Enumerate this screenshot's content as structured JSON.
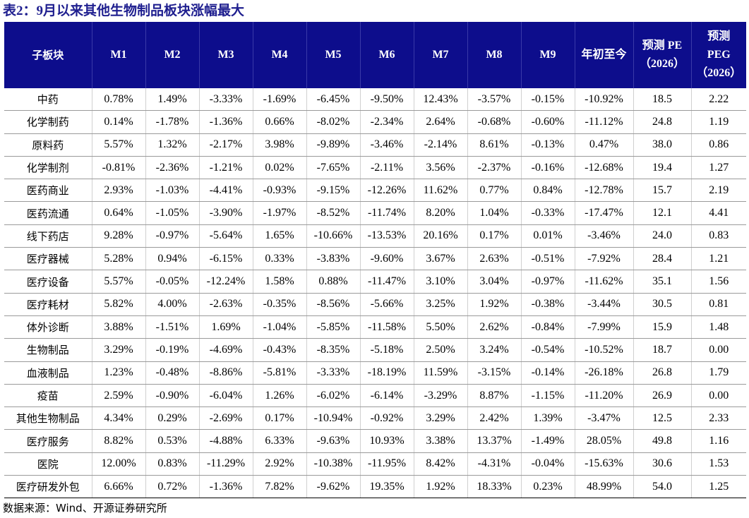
{
  "title": "表2：9月以来其他生物制品板块涨幅最大",
  "table": {
    "headers": [
      "子板块",
      "M1",
      "M2",
      "M3",
      "M4",
      "M5",
      "M6",
      "M7",
      "M8",
      "M9",
      "年初至今",
      "预测 PE\n（2026）",
      "预测\nPEG\n（2026）"
    ],
    "rows": [
      [
        "中药",
        "0.78%",
        "1.49%",
        "-3.33%",
        "-1.69%",
        "-6.45%",
        "-9.50%",
        "12.43%",
        "-3.57%",
        "-0.15%",
        "-10.92%",
        "18.5",
        "2.22"
      ],
      [
        "化学制药",
        "0.14%",
        "-1.78%",
        "-1.36%",
        "0.66%",
        "-8.02%",
        "-2.34%",
        "2.64%",
        "-0.68%",
        "-0.60%",
        "-11.12%",
        "24.8",
        "1.19"
      ],
      [
        "原料药",
        "5.57%",
        "1.32%",
        "-2.17%",
        "3.98%",
        "-9.89%",
        "-3.46%",
        "-2.14%",
        "8.61%",
        "-0.13%",
        "0.47%",
        "38.0",
        "0.86"
      ],
      [
        "化学制剂",
        "-0.81%",
        "-2.36%",
        "-1.21%",
        "0.02%",
        "-7.65%",
        "-2.11%",
        "3.56%",
        "-2.37%",
        "-0.16%",
        "-12.68%",
        "19.4",
        "1.27"
      ],
      [
        "医药商业",
        "2.93%",
        "-1.03%",
        "-4.41%",
        "-0.93%",
        "-9.15%",
        "-12.26%",
        "11.62%",
        "0.77%",
        "0.84%",
        "-12.78%",
        "15.7",
        "2.19"
      ],
      [
        "医药流通",
        "0.64%",
        "-1.05%",
        "-3.90%",
        "-1.97%",
        "-8.52%",
        "-11.74%",
        "8.20%",
        "1.04%",
        "-0.33%",
        "-17.47%",
        "12.1",
        "4.41"
      ],
      [
        "线下药店",
        "9.28%",
        "-0.97%",
        "-5.64%",
        "1.65%",
        "-10.66%",
        "-13.53%",
        "20.16%",
        "0.17%",
        "0.01%",
        "-3.46%",
        "24.0",
        "0.83"
      ],
      [
        "医疗器械",
        "5.28%",
        "0.94%",
        "-6.15%",
        "0.33%",
        "-3.83%",
        "-9.60%",
        "3.67%",
        "2.63%",
        "-0.51%",
        "-7.92%",
        "28.4",
        "1.21"
      ],
      [
        "医疗设备",
        "5.57%",
        "-0.05%",
        "-12.24%",
        "1.58%",
        "0.88%",
        "-11.47%",
        "3.10%",
        "3.04%",
        "-0.97%",
        "-11.62%",
        "35.1",
        "1.56"
      ],
      [
        "医疗耗材",
        "5.82%",
        "4.00%",
        "-2.63%",
        "-0.35%",
        "-8.56%",
        "-5.66%",
        "3.25%",
        "1.92%",
        "-0.38%",
        "-3.44%",
        "30.5",
        "0.81"
      ],
      [
        "体外诊断",
        "3.88%",
        "-1.51%",
        "1.69%",
        "-1.04%",
        "-5.85%",
        "-11.58%",
        "5.50%",
        "2.62%",
        "-0.84%",
        "-7.99%",
        "15.9",
        "1.48"
      ],
      [
        "生物制品",
        "3.29%",
        "-0.19%",
        "-4.69%",
        "-0.43%",
        "-8.35%",
        "-5.18%",
        "2.50%",
        "3.24%",
        "-0.54%",
        "-10.52%",
        "18.7",
        "0.00"
      ],
      [
        "血液制品",
        "1.23%",
        "-0.48%",
        "-8.86%",
        "-5.81%",
        "-3.33%",
        "-18.19%",
        "11.59%",
        "-3.15%",
        "-0.14%",
        "-26.18%",
        "26.8",
        "1.79"
      ],
      [
        "疫苗",
        "2.59%",
        "-0.90%",
        "-6.04%",
        "1.26%",
        "-6.02%",
        "-6.14%",
        "-3.29%",
        "8.87%",
        "-1.15%",
        "-11.20%",
        "26.9",
        "0.00"
      ],
      [
        "其他生物制品",
        "4.34%",
        "0.29%",
        "-2.69%",
        "0.17%",
        "-10.94%",
        "-0.92%",
        "3.29%",
        "2.42%",
        "1.39%",
        "-3.47%",
        "12.5",
        "2.33"
      ],
      [
        "医疗服务",
        "8.82%",
        "0.53%",
        "-4.88%",
        "6.33%",
        "-9.63%",
        "10.93%",
        "3.38%",
        "13.37%",
        "-1.49%",
        "28.05%",
        "49.8",
        "1.16"
      ],
      [
        "医院",
        "12.00%",
        "0.83%",
        "-11.29%",
        "2.92%",
        "-10.38%",
        "-11.95%",
        "8.42%",
        "-4.31%",
        "-0.04%",
        "-15.63%",
        "30.6",
        "1.53"
      ],
      [
        "医疗研发外包",
        "6.66%",
        "0.72%",
        "-1.36%",
        "7.82%",
        "-9.62%",
        "19.35%",
        "1.92%",
        "18.33%",
        "0.23%",
        "48.99%",
        "54.0",
        "1.25"
      ]
    ]
  },
  "source": "数据来源：Wind、开源证券研究所",
  "colors": {
    "header_bg": "#0d0d8c",
    "title_text": "#1f1f8f"
  }
}
